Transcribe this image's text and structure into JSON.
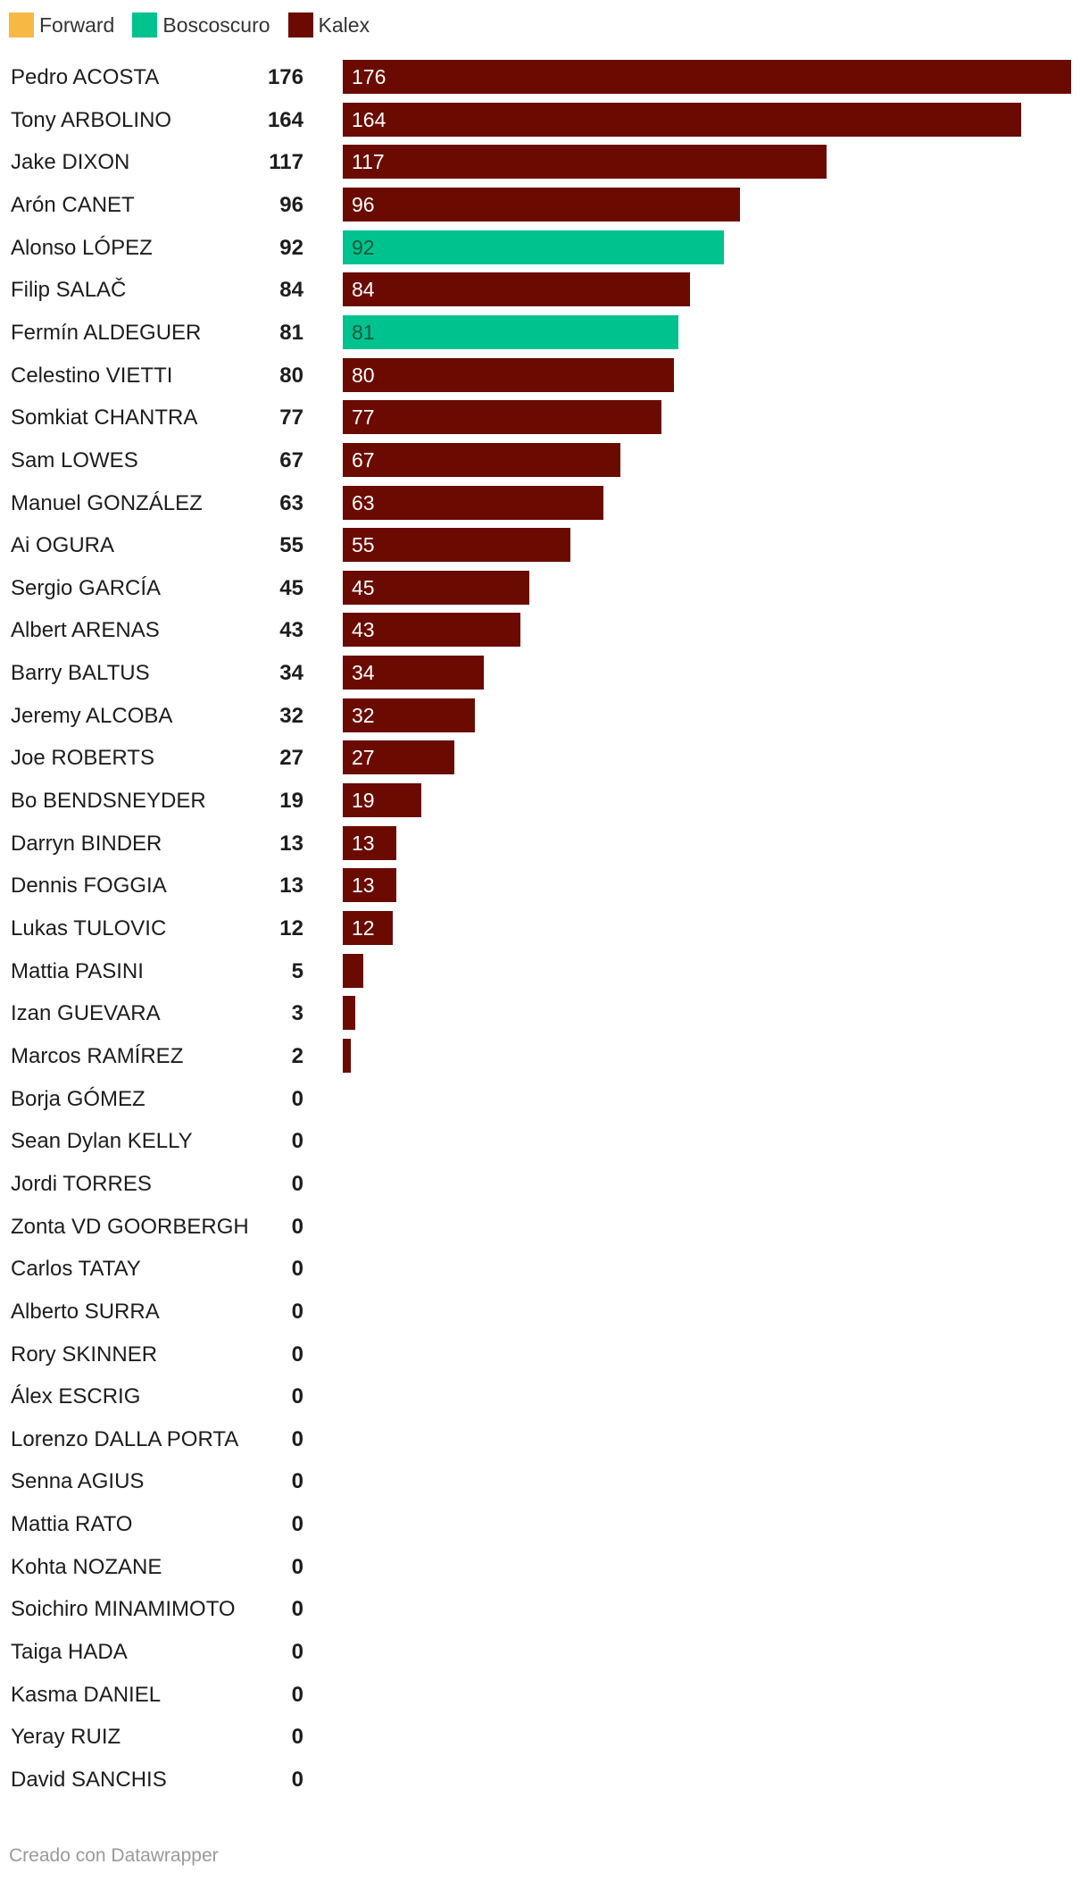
{
  "legend": [
    {
      "label": "Forward",
      "color": "#f7b944"
    },
    {
      "label": "Boscoscuro",
      "color": "#00c28e"
    },
    {
      "label": "Kalex",
      "color": "#6b0a01"
    }
  ],
  "credit": "Creado con Datawrapper",
  "chart_data": {
    "type": "bar",
    "orientation": "horizontal",
    "categories": [
      "Pedro ACOSTA",
      "Tony ARBOLINO",
      "Jake DIXON",
      "Arón CANET",
      "Alonso LÓPEZ",
      "Filip SALAČ",
      "Fermín ALDEGUER",
      "Celestino VIETTI",
      "Somkiat CHANTRA",
      "Sam LOWES",
      "Manuel GONZÁLEZ",
      "Ai OGURA",
      "Sergio GARCÍA",
      "Albert ARENAS",
      "Barry BALTUS",
      "Jeremy ALCOBA",
      "Joe ROBERTS",
      "Bo BENDSNEYDER",
      "Darryn BINDER",
      "Dennis FOGGIA",
      "Lukas TULOVIC",
      "Mattia PASINI",
      "Izan GUEVARA",
      "Marcos RAMÍREZ",
      "Borja GÓMEZ",
      "Sean Dylan KELLY",
      "Jordi TORRES",
      "Zonta VD GOORBERGH",
      "Carlos TATAY",
      "Alberto SURRA",
      "Rory SKINNER",
      "Álex ESCRIG",
      "Lorenzo DALLA PORTA",
      "Senna AGIUS",
      "Mattia RATO",
      "Kohta NOZANE",
      "Soichiro MINAMIMOTO",
      "Taiga HADA",
      "Kasma DANIEL",
      "Yeray RUIZ",
      "David SANCHIS"
    ],
    "values": [
      176,
      164,
      117,
      96,
      92,
      84,
      81,
      80,
      77,
      67,
      63,
      55,
      45,
      43,
      34,
      32,
      27,
      19,
      13,
      13,
      12,
      5,
      3,
      2,
      0,
      0,
      0,
      0,
      0,
      0,
      0,
      0,
      0,
      0,
      0,
      0,
      0,
      0,
      0,
      0,
      0
    ],
    "constructor": [
      "Kalex",
      "Kalex",
      "Kalex",
      "Kalex",
      "Boscoscuro",
      "Kalex",
      "Boscoscuro",
      "Kalex",
      "Kalex",
      "Kalex",
      "Kalex",
      "Kalex",
      "Kalex",
      "Kalex",
      "Kalex",
      "Kalex",
      "Kalex",
      "Kalex",
      "Kalex",
      "Kalex",
      "Kalex",
      "Kalex",
      "Kalex",
      "Kalex",
      "Kalex",
      "Kalex",
      "Kalex",
      "Kalex",
      "Kalex",
      "Kalex",
      "Kalex",
      "Kalex",
      "Kalex",
      "Kalex",
      "Kalex",
      "Kalex",
      "Kalex",
      "Kalex",
      "Kalex",
      "Kalex",
      "Kalex"
    ],
    "xlim": [
      0,
      176
    ],
    "grid": false,
    "legend_position": "top-left"
  }
}
